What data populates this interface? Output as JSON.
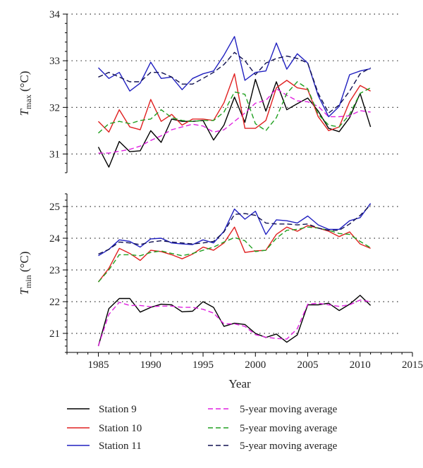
{
  "chart_data": [
    {
      "type": "line",
      "ylabel_main": "T",
      "ylabel_sub": "max",
      "ylabel_unit": " (°C)",
      "ylim": [
        30.6,
        34.0
      ],
      "yticks": [
        31,
        32,
        33,
        34
      ],
      "xlim": [
        1982,
        2015
      ],
      "grid": "horizontal-dotted",
      "x": [
        1985,
        1986,
        1987,
        1988,
        1989,
        1990,
        1991,
        1992,
        1993,
        1994,
        1995,
        1996,
        1997,
        1998,
        1999,
        2000,
        2001,
        2002,
        2003,
        2004,
        2005,
        2006,
        2007,
        2008,
        2009,
        2010,
        2011
      ],
      "series": [
        {
          "name": "Station 9",
          "color": "#000000",
          "dash": false,
          "values": [
            31.15,
            30.72,
            31.27,
            31.05,
            31.07,
            31.5,
            31.25,
            31.75,
            31.7,
            31.7,
            31.72,
            31.3,
            31.62,
            32.22,
            31.68,
            32.6,
            31.92,
            32.55,
            31.95,
            32.08,
            32.2,
            31.92,
            31.55,
            31.48,
            31.78,
            32.3,
            31.58
          ]
        },
        {
          "name": "5-year moving average",
          "color": "#e020e0",
          "dash": true,
          "values": [
            31.02,
            31.02,
            31.06,
            31.1,
            31.17,
            31.29,
            31.39,
            31.52,
            31.58,
            31.64,
            31.6,
            31.47,
            31.52,
            31.7,
            31.88,
            32.09,
            32.15,
            32.4,
            32.26,
            32.14,
            32.12,
            32.02,
            31.8,
            31.8,
            31.82,
            31.93,
            31.9
          ]
        },
        {
          "name": "Station 10",
          "color": "#e02020",
          "dash": false,
          "values": [
            31.7,
            31.47,
            31.95,
            31.58,
            31.52,
            32.17,
            31.7,
            31.85,
            31.62,
            31.75,
            31.75,
            31.72,
            32.1,
            32.72,
            31.55,
            31.55,
            31.72,
            32.42,
            32.58,
            32.42,
            32.38,
            31.8,
            31.5,
            31.58,
            32.12,
            32.47,
            32.35
          ]
        },
        {
          "name": "5-year moving average",
          "color": "#20a020",
          "dash": true,
          "values": [
            31.45,
            31.65,
            31.7,
            31.65,
            31.72,
            31.75,
            31.95,
            31.78,
            31.72,
            31.7,
            31.72,
            31.72,
            31.9,
            32.33,
            32.28,
            31.65,
            31.5,
            31.78,
            32.3,
            32.55,
            32.4,
            31.85,
            31.62,
            31.58,
            31.85,
            32.3,
            32.42
          ]
        },
        {
          "name": "Station 11",
          "color": "#2020c0",
          "dash": false,
          "values": [
            32.85,
            32.62,
            32.75,
            32.35,
            32.52,
            32.97,
            32.62,
            32.65,
            32.38,
            32.62,
            32.72,
            32.78,
            33.12,
            33.52,
            32.58,
            32.75,
            32.78,
            33.38,
            32.82,
            33.15,
            32.95,
            32.25,
            31.8,
            32.02,
            32.7,
            32.78,
            32.83
          ]
        },
        {
          "name": "5-year moving average",
          "color": "#101050",
          "dash": true,
          "values": [
            32.65,
            32.75,
            32.65,
            32.55,
            32.55,
            32.75,
            32.75,
            32.65,
            32.5,
            32.5,
            32.62,
            32.75,
            32.92,
            33.18,
            33.0,
            32.7,
            32.95,
            33.05,
            33.1,
            33.05,
            32.95,
            32.3,
            31.88,
            32.05,
            32.35,
            32.72,
            32.85
          ]
        }
      ]
    },
    {
      "type": "line",
      "ylabel_main": "T",
      "ylabel_sub": "min",
      "ylabel_unit": " (°C)",
      "ylim": [
        20.4,
        25.4
      ],
      "yticks": [
        21,
        22,
        23,
        24,
        25
      ],
      "xlim": [
        1982,
        2015
      ],
      "xticks": [
        1985,
        1990,
        1995,
        2000,
        2005,
        2010,
        2015
      ],
      "xlabel": "Year",
      "grid": "horizontal-dotted",
      "x": [
        1985,
        1986,
        1987,
        1988,
        1989,
        1990,
        1991,
        1992,
        1993,
        1994,
        1995,
        1996,
        1997,
        1998,
        1999,
        2000,
        2001,
        2002,
        2003,
        2004,
        2005,
        2006,
        2007,
        2008,
        2009,
        2010,
        2011
      ],
      "series": [
        {
          "name": "Station 9",
          "color": "#000000",
          "dash": false,
          "values": [
            20.6,
            21.78,
            22.1,
            22.1,
            21.67,
            21.82,
            21.92,
            21.9,
            21.68,
            21.7,
            22.0,
            21.82,
            21.22,
            21.32,
            21.28,
            21.0,
            20.87,
            20.98,
            20.72,
            20.95,
            21.9,
            21.9,
            21.95,
            21.72,
            21.92,
            22.2,
            21.88
          ]
        },
        {
          "name": "5-year moving average",
          "color": "#e020e0",
          "dash": true,
          "values": [
            20.6,
            21.6,
            21.98,
            21.88,
            21.88,
            21.84,
            21.86,
            21.86,
            21.82,
            21.82,
            21.76,
            21.64,
            21.3,
            21.3,
            21.22,
            20.96,
            20.88,
            20.84,
            20.82,
            21.15,
            21.92,
            21.95,
            21.9,
            21.85,
            21.9,
            22.05,
            22.0
          ]
        },
        {
          "name": "Station 10",
          "color": "#e02020",
          "dash": false,
          "values": [
            22.62,
            23.05,
            23.68,
            23.52,
            23.3,
            23.62,
            23.58,
            23.48,
            23.35,
            23.5,
            23.72,
            23.62,
            23.85,
            24.35,
            23.55,
            23.6,
            23.62,
            24.12,
            24.35,
            24.22,
            24.4,
            24.32,
            24.22,
            24.05,
            24.2,
            23.82,
            23.68
          ]
        },
        {
          "name": "5-year moving average",
          "color": "#20a020",
          "dash": true,
          "values": [
            22.62,
            23.0,
            23.48,
            23.48,
            23.45,
            23.55,
            23.6,
            23.52,
            23.45,
            23.52,
            23.62,
            23.72,
            23.88,
            24.02,
            23.92,
            23.58,
            23.62,
            24.0,
            24.25,
            24.28,
            24.35,
            24.32,
            24.25,
            24.15,
            24.12,
            23.9,
            23.7
          ]
        },
        {
          "name": "Station 11",
          "color": "#2020c0",
          "dash": false,
          "values": [
            23.45,
            23.65,
            23.95,
            23.9,
            23.72,
            23.98,
            24.0,
            23.85,
            23.82,
            23.8,
            23.95,
            23.85,
            24.22,
            24.92,
            24.6,
            24.85,
            24.12,
            24.58,
            24.55,
            24.48,
            24.7,
            24.42,
            24.28,
            24.28,
            24.55,
            24.65,
            25.1
          ]
        },
        {
          "name": "5-year moving average",
          "color": "#101050",
          "dash": true,
          "values": [
            23.5,
            23.65,
            23.88,
            23.85,
            23.8,
            23.88,
            23.92,
            23.88,
            23.85,
            23.82,
            23.85,
            23.9,
            24.2,
            24.75,
            24.78,
            24.72,
            24.48,
            24.45,
            24.45,
            24.42,
            24.45,
            24.32,
            24.25,
            24.25,
            24.45,
            24.72,
            25.05
          ]
        }
      ]
    }
  ],
  "legend": {
    "items": [
      {
        "label": "Station 9",
        "color": "#000000",
        "dash": false
      },
      {
        "label": "5-year moving average",
        "color": "#e020e0",
        "dash": true
      },
      {
        "label": "Station 10",
        "color": "#e02020",
        "dash": false
      },
      {
        "label": "5-year moving average",
        "color": "#20a020",
        "dash": true
      },
      {
        "label": "Station 11",
        "color": "#2020c0",
        "dash": false
      },
      {
        "label": "5-year moving average",
        "color": "#101050",
        "dash": true
      }
    ]
  }
}
